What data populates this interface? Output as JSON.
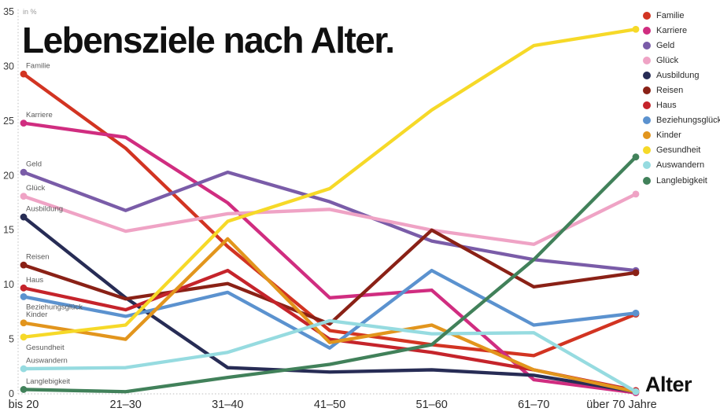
{
  "chart_data": {
    "type": "line",
    "title": "Lebensziele nach Alter.",
    "unit_label": "in %",
    "xlabel": "Alter",
    "categories": [
      "bis 20",
      "21–30",
      "31–40",
      "41–50",
      "51–60",
      "61–70",
      "über 70 Jahre"
    ],
    "y_ticks": [
      35,
      30,
      25,
      20,
      15,
      10,
      5,
      0
    ],
    "ylim": [
      0,
      35
    ],
    "grid": "dotted y-axis and baseline only",
    "legend_position": "top-right",
    "series": [
      {
        "name": "Familie",
        "color": "#d23422",
        "label_position": "above",
        "values": [
          29.3,
          22.5,
          13.5,
          5.8,
          4.5,
          3.5,
          7.3
        ]
      },
      {
        "name": "Karriere",
        "color": "#d02d80",
        "label_position": "above",
        "values": [
          24.8,
          23.5,
          17.5,
          8.8,
          9.5,
          1.3,
          0.1
        ]
      },
      {
        "name": "Geld",
        "color": "#7a5ca8",
        "label_position": "above",
        "values": [
          20.3,
          16.8,
          20.3,
          17.6,
          14.0,
          12.3,
          11.3
        ]
      },
      {
        "name": "Glück",
        "color": "#efa3c5",
        "label_position": "above",
        "values": [
          18.1,
          14.9,
          16.5,
          16.9,
          15.0,
          13.7,
          18.3
        ]
      },
      {
        "name": "Ausbildung",
        "color": "#272c55",
        "label_position": "above",
        "values": [
          16.2,
          8.8,
          2.4,
          2.0,
          2.2,
          1.7,
          0.2
        ]
      },
      {
        "name": "Reisen",
        "color": "#8a2116",
        "label_position": "above",
        "values": [
          11.8,
          8.7,
          10.1,
          6.4,
          15.0,
          9.8,
          11.1
        ]
      },
      {
        "name": "Haus",
        "color": "#c5242b",
        "label_position": "above",
        "values": [
          9.7,
          7.7,
          11.3,
          5.0,
          3.8,
          2.2,
          0.3
        ]
      },
      {
        "name": "Beziehungsglück",
        "color": "#5b92cf",
        "label_position": "below",
        "values": [
          8.9,
          7.1,
          9.3,
          4.2,
          11.3,
          6.3,
          7.4
        ]
      },
      {
        "name": "Kinder",
        "color": "#e2951d",
        "label_position": "above",
        "values": [
          6.5,
          5.0,
          14.2,
          4.7,
          6.3,
          2.2,
          0.2
        ]
      },
      {
        "name": "Gesundheit",
        "color": "#f6d928",
        "label_position": "below",
        "values": [
          5.2,
          6.3,
          15.8,
          18.8,
          26.0,
          31.9,
          33.4
        ]
      },
      {
        "name": "Auswandern",
        "color": "#96dbe0",
        "label_position": "above",
        "values": [
          2.3,
          2.4,
          3.8,
          6.7,
          5.5,
          5.6,
          0.2
        ]
      },
      {
        "name": "Langlebigkeit",
        "color": "#41815a",
        "label_position": "above",
        "values": [
          0.4,
          0.2,
          1.5,
          2.7,
          4.5,
          12.3,
          21.7
        ]
      }
    ],
    "axis_colors": {
      "dotted_axis": "#c9c9c9",
      "tick_text": "#3d3d3d",
      "x_label_text": "#2b2b2b",
      "series_start_label": "#5a5a5a"
    }
  }
}
